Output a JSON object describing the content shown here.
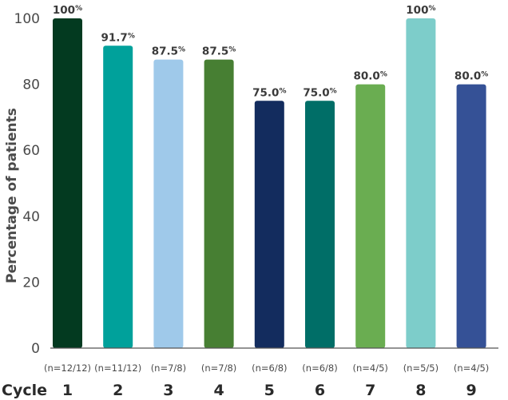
{
  "chart_data": {
    "type": "bar",
    "xlabel": "Cycle",
    "ylabel": "Percentage of patients",
    "ylim": [
      0,
      100
    ],
    "yticks": [
      "0",
      "20",
      "40",
      "60",
      "80",
      "100"
    ],
    "grid": false,
    "categories": [
      "1",
      "2",
      "3",
      "4",
      "5",
      "6",
      "7",
      "8",
      "9"
    ],
    "values": [
      100,
      91.7,
      87.5,
      87.5,
      75.0,
      75.0,
      80.0,
      100,
      80.0
    ],
    "value_labels": [
      "100",
      "91.7",
      "87.5",
      "87.5",
      "75.0",
      "75.0",
      "80.0",
      "100",
      "80.0"
    ],
    "value_unit": "%",
    "n_labels": [
      "(n=12/12)",
      "(n=11/12)",
      "(n=7/8)",
      "(n=7/8)",
      "(n=6/8)",
      "(n=6/8)",
      "(n=4/5)",
      "(n=5/5)",
      "(n=4/5)"
    ],
    "colors": [
      "#033a20",
      "#00a19b",
      "#9fc9ea",
      "#477f33",
      "#132c5e",
      "#006e67",
      "#6aad51",
      "#7dcdca",
      "#355196"
    ]
  }
}
